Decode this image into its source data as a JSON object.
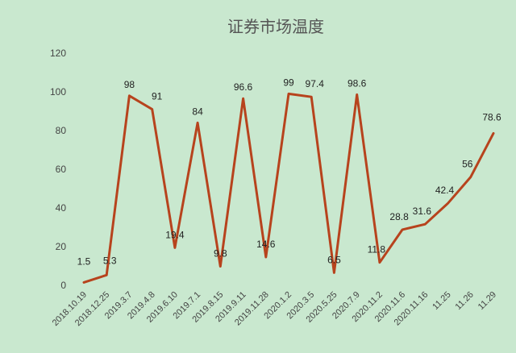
{
  "chart_data": {
    "type": "line",
    "title": "证券市场温度",
    "xlabel": "",
    "ylabel": "",
    "ylim": [
      0,
      120
    ],
    "yticks": [
      0,
      20,
      40,
      60,
      80,
      100,
      120
    ],
    "grid": false,
    "legend": "none",
    "categories": [
      "2018.10.19",
      "2018.12.25",
      "2019.3.7",
      "2019.4.8",
      "2019.6.10",
      "2019.7.1",
      "2019.8.15",
      "2019.9.11",
      "2019.11.28",
      "2020.1.2",
      "2020.3.5",
      "2020.5.25",
      "2020.7.9",
      "2020.11.2",
      "2020.11.6",
      "2020.11.16",
      "11.25",
      "11.26",
      "11.29"
    ],
    "series": [
      {
        "name": "",
        "color": "#b7431d",
        "values": [
          1.5,
          5.3,
          98,
          91,
          19.4,
          84,
          9.8,
          96.6,
          14.6,
          99,
          97.4,
          6.5,
          98.6,
          11.8,
          28.8,
          31.6,
          42.4,
          56,
          78.6
        ],
        "labels": [
          "1.5",
          "5.3",
          "98",
          "91",
          "19.4",
          "84",
          "9.8",
          "96.6",
          "14.6",
          "99",
          "97.4",
          "6.5",
          "98.6",
          "11.8",
          "28.8",
          "31.6",
          "42.4",
          "56",
          "78.6"
        ]
      }
    ]
  }
}
